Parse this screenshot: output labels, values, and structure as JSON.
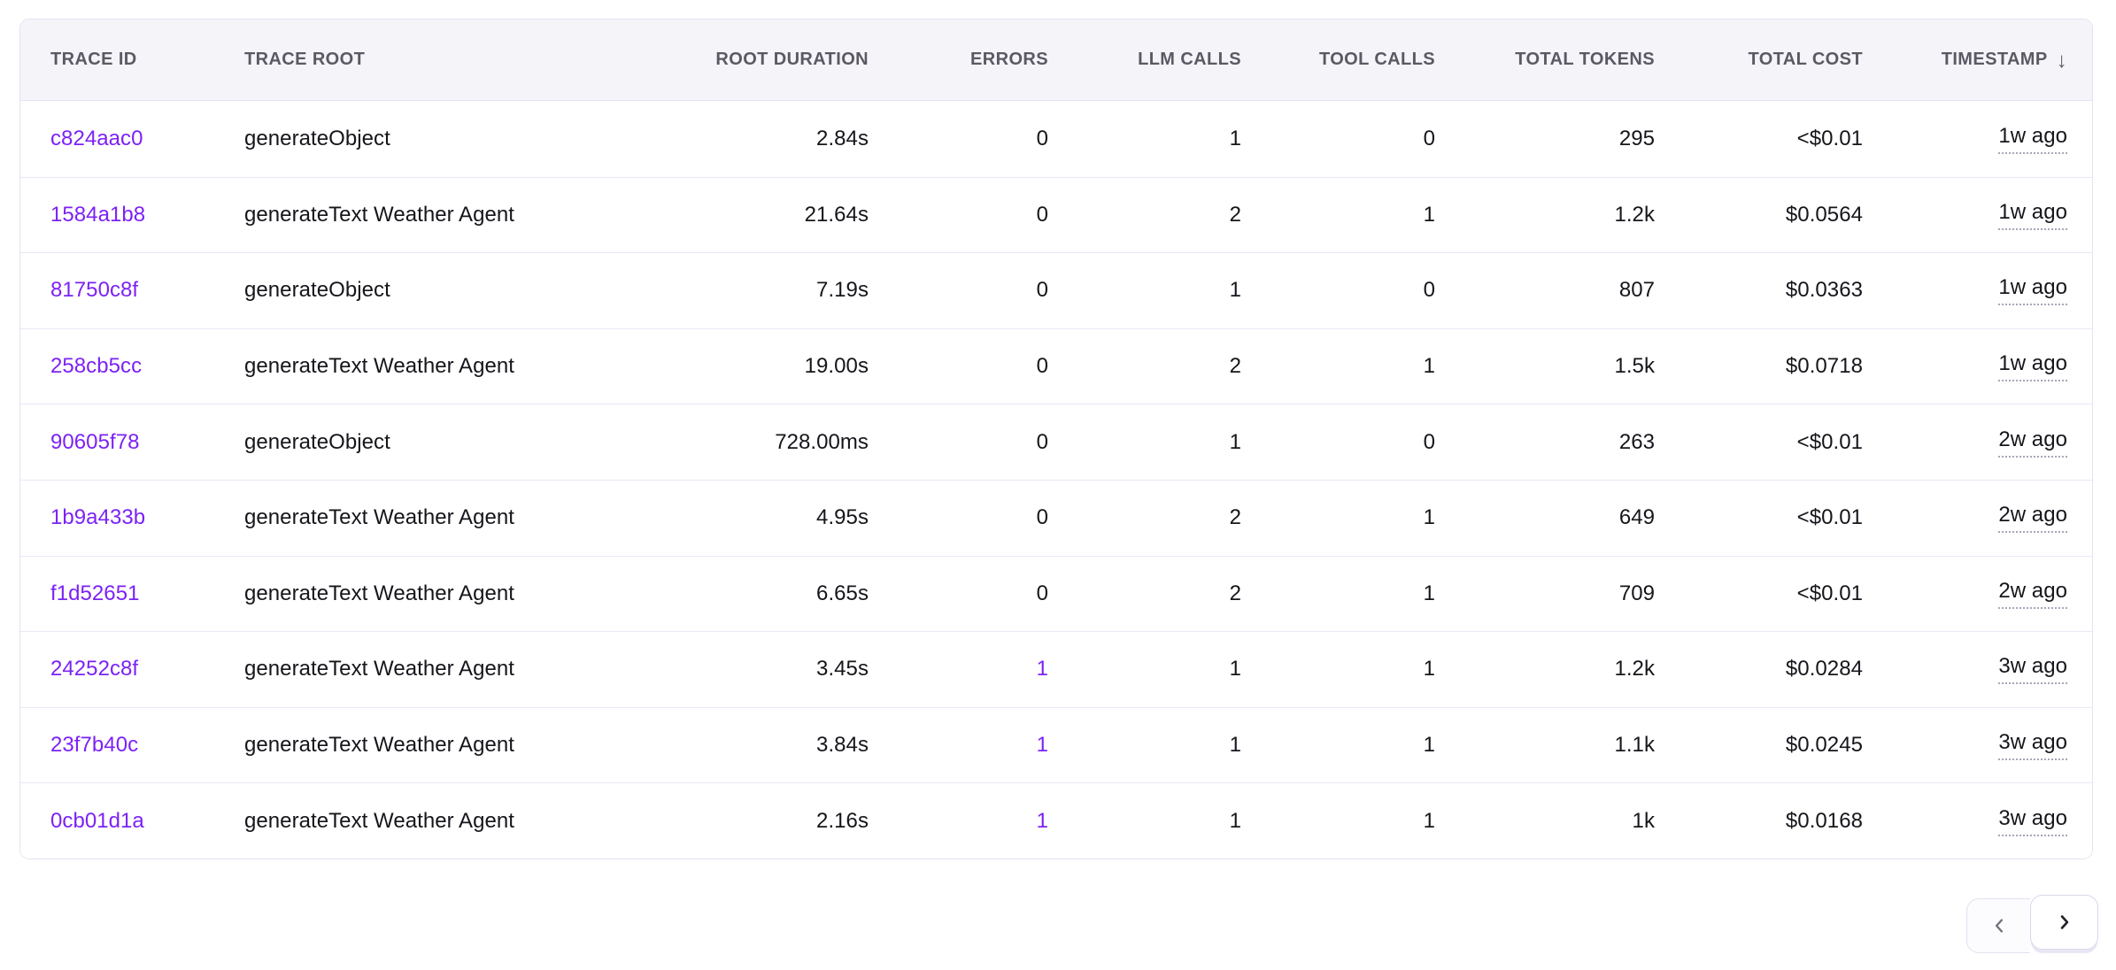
{
  "table": {
    "sort_icon": "↓",
    "columns": [
      {
        "key": "trace_id",
        "label": "TRACE ID",
        "align": "left",
        "sorted": false
      },
      {
        "key": "trace_root",
        "label": "TRACE ROOT",
        "align": "left",
        "sorted": false
      },
      {
        "key": "root_duration",
        "label": "ROOT DURATION",
        "align": "right",
        "sorted": false
      },
      {
        "key": "errors",
        "label": "ERRORS",
        "align": "right",
        "sorted": false
      },
      {
        "key": "llm_calls",
        "label": "LLM CALLS",
        "align": "right",
        "sorted": false
      },
      {
        "key": "tool_calls",
        "label": "TOOL CALLS",
        "align": "right",
        "sorted": false
      },
      {
        "key": "total_tokens",
        "label": "TOTAL TOKENS",
        "align": "right",
        "sorted": false
      },
      {
        "key": "total_cost",
        "label": "TOTAL COST",
        "align": "right",
        "sorted": false
      },
      {
        "key": "timestamp",
        "label": "TIMESTAMP",
        "align": "right",
        "sorted": true,
        "sort_direction": "desc"
      }
    ],
    "rows": [
      {
        "trace_id": "c824aac0",
        "trace_root": "generateObject",
        "root_duration": "2.84s",
        "errors": "0",
        "llm_calls": "1",
        "tool_calls": "0",
        "total_tokens": "295",
        "total_cost": "<$0.01",
        "timestamp": "1w ago"
      },
      {
        "trace_id": "1584a1b8",
        "trace_root": "generateText Weather Agent",
        "root_duration": "21.64s",
        "errors": "0",
        "llm_calls": "2",
        "tool_calls": "1",
        "total_tokens": "1.2k",
        "total_cost": "$0.0564",
        "timestamp": "1w ago"
      },
      {
        "trace_id": "81750c8f",
        "trace_root": "generateObject",
        "root_duration": "7.19s",
        "errors": "0",
        "llm_calls": "1",
        "tool_calls": "0",
        "total_tokens": "807",
        "total_cost": "$0.0363",
        "timestamp": "1w ago"
      },
      {
        "trace_id": "258cb5cc",
        "trace_root": "generateText Weather Agent",
        "root_duration": "19.00s",
        "errors": "0",
        "llm_calls": "2",
        "tool_calls": "1",
        "total_tokens": "1.5k",
        "total_cost": "$0.0718",
        "timestamp": "1w ago"
      },
      {
        "trace_id": "90605f78",
        "trace_root": "generateObject",
        "root_duration": "728.00ms",
        "errors": "0",
        "llm_calls": "1",
        "tool_calls": "0",
        "total_tokens": "263",
        "total_cost": "<$0.01",
        "timestamp": "2w ago"
      },
      {
        "trace_id": "1b9a433b",
        "trace_root": "generateText Weather Agent",
        "root_duration": "4.95s",
        "errors": "0",
        "llm_calls": "2",
        "tool_calls": "1",
        "total_tokens": "649",
        "total_cost": "<$0.01",
        "timestamp": "2w ago"
      },
      {
        "trace_id": "f1d52651",
        "trace_root": "generateText Weather Agent",
        "root_duration": "6.65s",
        "errors": "0",
        "llm_calls": "2",
        "tool_calls": "1",
        "total_tokens": "709",
        "total_cost": "<$0.01",
        "timestamp": "2w ago"
      },
      {
        "trace_id": "24252c8f",
        "trace_root": "generateText Weather Agent",
        "root_duration": "3.45s",
        "errors": "1",
        "llm_calls": "1",
        "tool_calls": "1",
        "total_tokens": "1.2k",
        "total_cost": "$0.0284",
        "timestamp": "3w ago"
      },
      {
        "trace_id": "23f7b40c",
        "trace_root": "generateText Weather Agent",
        "root_duration": "3.84s",
        "errors": "1",
        "llm_calls": "1",
        "tool_calls": "1",
        "total_tokens": "1.1k",
        "total_cost": "$0.0245",
        "timestamp": "3w ago"
      },
      {
        "trace_id": "0cb01d1a",
        "trace_root": "generateText Weather Agent",
        "root_duration": "2.16s",
        "errors": "1",
        "llm_calls": "1",
        "tool_calls": "1",
        "total_tokens": "1k",
        "total_cost": "$0.0168",
        "timestamp": "3w ago"
      }
    ]
  },
  "pagination": {
    "prev_icon": "chevron-left",
    "next_icon": "chevron-right"
  },
  "colors": {
    "accent": "#7c22f5",
    "text": "#16151b",
    "header_text": "#5a5964",
    "header_bg": "#f5f4f9",
    "border": "#e5e2f1",
    "row_border": "#eae8f4",
    "underline": "#a9a6b8"
  }
}
